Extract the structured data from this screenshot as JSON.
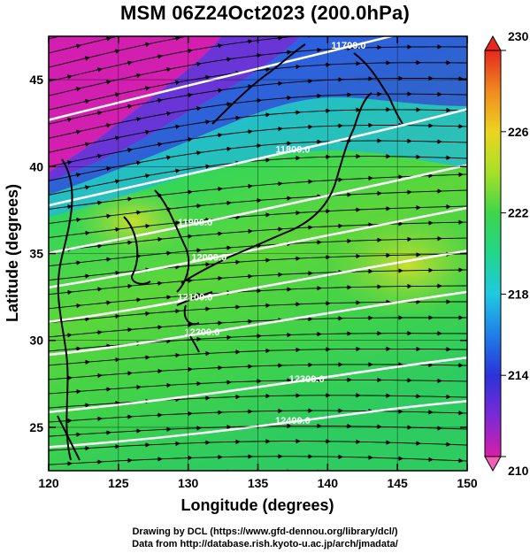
{
  "title": "MSM 06Z24Oct2023 (200.0hPa)",
  "axes": {
    "xlabel": "Longitude (degrees)",
    "ylabel": "Latitude  (degrees)",
    "xlim": [
      120,
      150
    ],
    "ylim": [
      22.5,
      47.5
    ],
    "xticks": [
      120,
      125,
      130,
      135,
      140,
      145,
      150
    ],
    "yticks": [
      25,
      30,
      35,
      40,
      45
    ]
  },
  "colorbar": {
    "min": 210,
    "max": 230,
    "ticks": [
      210,
      214,
      218,
      222,
      226,
      230
    ]
  },
  "contours": [
    {
      "label": "11700.0",
      "lon": 141.5,
      "lat": 47.0
    },
    {
      "label": "11800.0",
      "lon": 137.5,
      "lat": 41.0
    },
    {
      "label": "11900.0",
      "lon": 130.5,
      "lat": 36.8
    },
    {
      "label": "12000.0",
      "lon": 131.5,
      "lat": 34.8
    },
    {
      "label": "12100.0",
      "lon": 130.5,
      "lat": 32.5
    },
    {
      "label": "12200.0",
      "lon": 131.0,
      "lat": 30.5
    },
    {
      "label": "12300.0",
      "lon": 138.5,
      "lat": 27.8
    },
    {
      "label": "12400.0",
      "lon": 137.5,
      "lat": 25.4
    }
  ],
  "credits": {
    "line1": "Drawing by DCL (https://www.gfd-dennou.org/library/dcl/)",
    "line2": "Data from http://database.rish.kyoto-u.ac.jp/arch/jmadata/"
  }
}
